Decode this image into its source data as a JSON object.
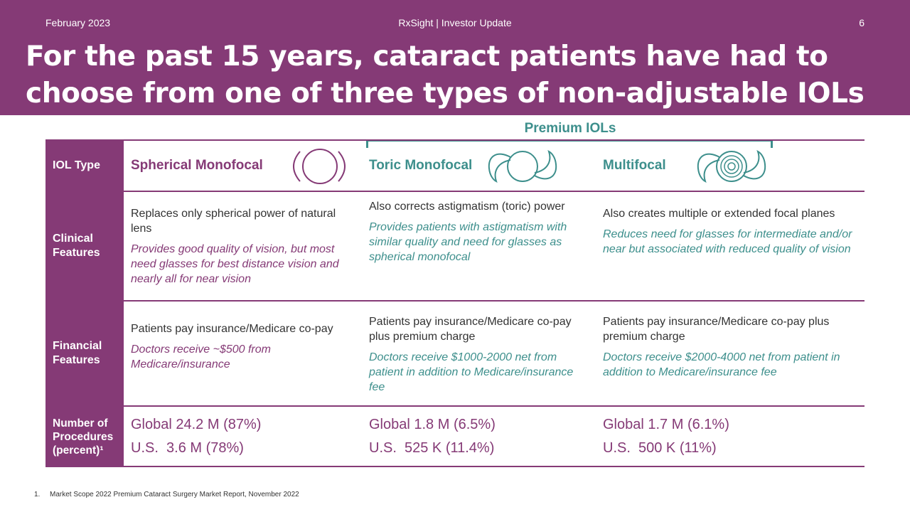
{
  "header": {
    "date": "February 2023",
    "center": "RxSight | Investor Update",
    "page_number": "6",
    "title": "For the past 15 years, cataract patients have had to choose from one of three types of non-adjustable IOLs"
  },
  "premium_label": "Premium IOLs",
  "table": {
    "rows": {
      "iol_type": "IOL Type",
      "clinical": "Clinical Features",
      "financial": "Financial Features",
      "procedures": "Number of Procedures (percent)¹"
    },
    "columns": [
      {
        "name": "Spherical Monofocal",
        "icon": "spherical-lens-icon",
        "clinical_main": "Replaces only spherical power of natural lens",
        "clinical_note": "Provides good quality of vision, but most need glasses for best distance vision and nearly all for near vision",
        "financial_main": "Patients pay insurance/Medicare co-pay",
        "financial_note": "Doctors receive ~$500 from Medicare/insurance",
        "global": "Global 24.2 M (87%)",
        "us": "U.S.  3.6 M (78%)"
      },
      {
        "name": "Toric Monofocal",
        "icon": "toric-lens-icon",
        "clinical_main": "Also corrects astigmatism (toric) power",
        "clinical_note": "Provides patients with astigmatism with similar quality and need for glasses as spherical monofocal",
        "financial_main": "Patients pay insurance/Medicare co-pay plus premium charge",
        "financial_note": "Doctors receive $1000-2000 net from patient in addition to Medicare/insurance fee",
        "global": "Global 1.8 M (6.5%)",
        "us": "U.S.  525 K (11.4%)"
      },
      {
        "name": "Multifocal",
        "icon": "multifocal-lens-icon",
        "clinical_main": "Also creates multiple or extended focal planes",
        "clinical_note": "Reduces need for glasses for intermediate and/or near but associated with reduced quality of vision",
        "financial_main": "Patients pay insurance/Medicare co-pay plus premium charge",
        "financial_note": "Doctors receive $2000-4000 net from patient in addition to Medicare/insurance fee",
        "global": "Global 1.7 M (6.1%)",
        "us": "U.S.  500 K (11%)"
      }
    ]
  },
  "footnote": {
    "number": "1.",
    "text": "Market Scope 2022 Premium Cataract Surgery Market Report, November 2022"
  },
  "colors": {
    "brand_purple": "#853a76",
    "teal": "#3d8f8c"
  }
}
